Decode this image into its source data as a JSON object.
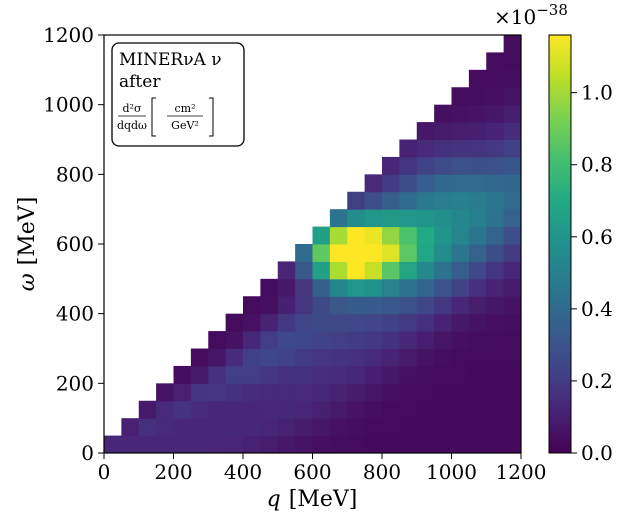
{
  "chart_data": {
    "type": "heatmap",
    "xlabel_var": "q",
    "xlabel_unit": "[MeV]",
    "ylabel_var": "ω",
    "ylabel_unit": "[MeV]",
    "x_range": [
      0,
      1200
    ],
    "y_range": [
      0,
      1200
    ],
    "x_ticks": [
      0,
      200,
      400,
      600,
      800,
      1000,
      1200
    ],
    "y_ticks": [
      0,
      200,
      400,
      600,
      800,
      1000,
      1200
    ],
    "bin_size": 50,
    "value_scale": "×10^-38",
    "colorbar_range": [
      0,
      1.16
    ],
    "colorbar_ticks": [
      "0.0",
      "0.2",
      "0.4",
      "0.6",
      "0.8",
      "1.0"
    ],
    "colorbar_offset": "×10",
    "colorbar_offset_exp": "−38",
    "colormap": "viridis",
    "legend": {
      "line1": "MINERνA ν",
      "line2": "after",
      "formula_num": "d²σ",
      "formula_den": "dqdω",
      "unit_num": "cm²",
      "unit_den": "GeV²"
    },
    "peak": {
      "q": 700,
      "omega": 575,
      "value": 1.15
    },
    "ridge_note": "values estimated from colour; cells exist only where omega < q (triangle below the diagonal)"
  }
}
